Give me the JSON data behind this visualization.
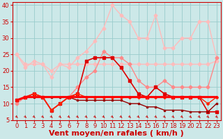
{
  "background_color": "#cce8e8",
  "grid_color": "#99cccc",
  "xlim": [
    -0.5,
    23.5
  ],
  "ylim": [
    5,
    41
  ],
  "yticks": [
    5,
    10,
    15,
    20,
    25,
    30,
    35,
    40
  ],
  "xticks": [
    0,
    1,
    2,
    3,
    4,
    5,
    6,
    7,
    8,
    9,
    10,
    11,
    12,
    13,
    14,
    15,
    16,
    17,
    18,
    19,
    20,
    21,
    22,
    23
  ],
  "series": [
    {
      "name": "light_pink_upper_rafales",
      "y": [
        25,
        21,
        23,
        22,
        18,
        22,
        21,
        24,
        26,
        29,
        33,
        40,
        37,
        35,
        30,
        30,
        37,
        27,
        27,
        30,
        30,
        35,
        35,
        24
      ],
      "color": "#ffbbbb",
      "linewidth": 1.0,
      "marker": "D",
      "markersize": 2.5,
      "zorder": 2
    },
    {
      "name": "light_pink_lower",
      "y": [
        25,
        22,
        22,
        22,
        20,
        22,
        22,
        22,
        22,
        22,
        22,
        22,
        22,
        22,
        22,
        22,
        22,
        22,
        22,
        22,
        22,
        22,
        22,
        23
      ],
      "color": "#ffbbbb",
      "linewidth": 1.0,
      "marker": "D",
      "markersize": 2.5,
      "zorder": 2
    },
    {
      "name": "pink_trending_up",
      "y": [
        10,
        12,
        13,
        12,
        8,
        10,
        12,
        15,
        18,
        20,
        26,
        24,
        24,
        22,
        17,
        15,
        15,
        17,
        15,
        15,
        15,
        15,
        15,
        24
      ],
      "color": "#ff8888",
      "linewidth": 1.0,
      "marker": "D",
      "markersize": 2.5,
      "zorder": 3
    },
    {
      "name": "dark_red_bold_flat",
      "y": [
        11,
        12,
        12,
        12,
        12,
        12,
        12,
        12,
        12,
        12,
        12,
        12,
        12,
        12,
        12,
        12,
        12,
        12,
        12,
        12,
        12,
        12,
        12,
        12
      ],
      "color": "#ff0000",
      "linewidth": 2.2,
      "marker": null,
      "markersize": 0,
      "zorder": 5
    },
    {
      "name": "medium_red_markers",
      "y": [
        11,
        12,
        13,
        12,
        8,
        10,
        12,
        13,
        23,
        24,
        24,
        24,
        21,
        17,
        13,
        12,
        15,
        13,
        12,
        12,
        12,
        12,
        7.5,
        7.5
      ],
      "color": "#dd0000",
      "linewidth": 1.2,
      "marker": "s",
      "markersize": 3.0,
      "zorder": 4
    },
    {
      "name": "dark_red_decreasing",
      "y": [
        11,
        12,
        12,
        12,
        12,
        12,
        12,
        11,
        11,
        11,
        11,
        11,
        11,
        10,
        10,
        9,
        9,
        8,
        8,
        8,
        7.5,
        7.5,
        7.5,
        10
      ],
      "color": "#990000",
      "linewidth": 1.0,
      "marker": "s",
      "markersize": 2.0,
      "zorder": 4
    },
    {
      "name": "bright_red_zigzag",
      "y": [
        11,
        12,
        13,
        12,
        8,
        10,
        12,
        13,
        12,
        12,
        12,
        12,
        12,
        12,
        12,
        12,
        12,
        12,
        12,
        12,
        12,
        12,
        10,
        12
      ],
      "color": "#ff2200",
      "linewidth": 1.0,
      "marker": "D",
      "markersize": 2.0,
      "zorder": 4
    }
  ],
  "xlabel": "Vent moyen/en rafales ( km/h )",
  "xlabel_color": "#cc0000",
  "xlabel_fontsize": 8,
  "tick_fontsize": 6,
  "tick_color": "#cc0000",
  "spine_color": "#cc0000"
}
